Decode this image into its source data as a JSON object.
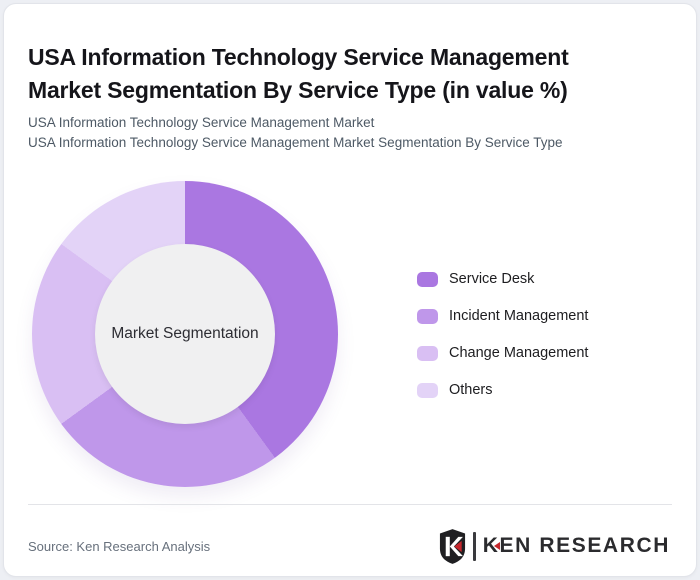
{
  "header": {
    "title": "USA Information Technology Service Management Market Segmentation By Service Type (in value %)",
    "subtitle_line1": "USA Information Technology Service Management Market",
    "subtitle_line2": "USA Information Technology Service Management Market Segmentation By Service Type"
  },
  "chart_data": {
    "type": "pie",
    "subtype": "donut",
    "title": "USA Information Technology Service Management Market Segmentation By Service Type (in value %)",
    "categories": [
      "Service Desk",
      "Incident Management",
      "Change Management",
      "Others"
    ],
    "values": [
      40,
      25,
      20,
      15
    ],
    "unit": "% of value",
    "colors": [
      "#aa77e1",
      "#bf97ea",
      "#d9bff3",
      "#e3d3f7"
    ],
    "center_label": "Market Segmentation",
    "legend_position": "right",
    "start_angle_deg": 0,
    "direction": "clockwise"
  },
  "footer": {
    "source_text": "Source: Ken Research Analysis",
    "logo_text": "KEN RESEARCH"
  },
  "theme": {
    "page_background": "#edeff4",
    "card_background": "#ffffff",
    "card_border": "#e2e4ea",
    "title_color": "#15151a",
    "subtitle_color": "#4d5965",
    "legend_text_color": "#1d1d20",
    "hole_color": "#f0f0f1",
    "center_label_color": "#2d2d33",
    "source_color": "#67707c",
    "logo_dark": "#2b2b2e",
    "logo_red": "#c5262c"
  }
}
